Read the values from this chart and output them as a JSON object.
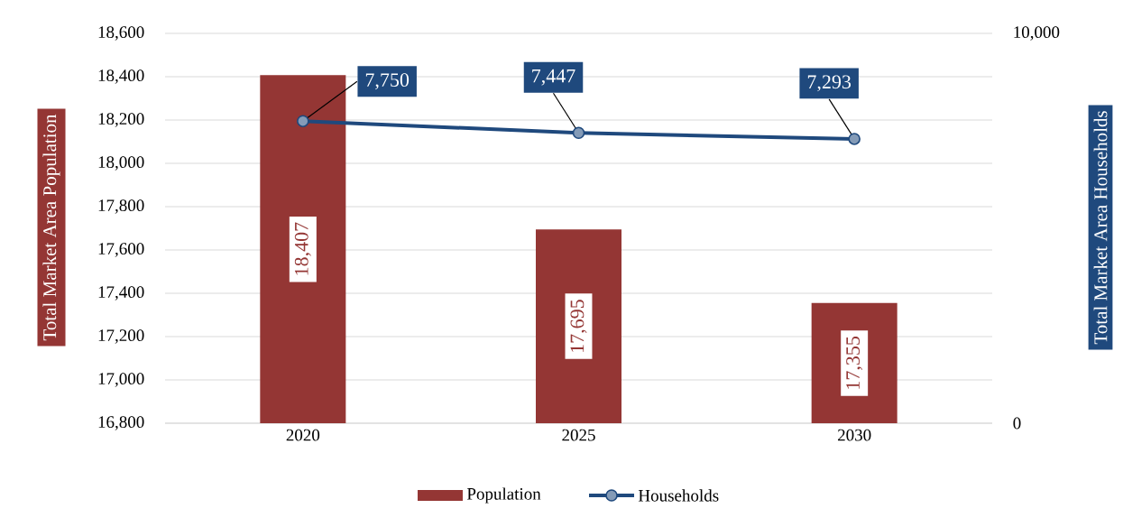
{
  "chart_data": {
    "type": "bar",
    "categories": [
      "2020",
      "2025",
      "2030"
    ],
    "series": [
      {
        "name": "Population",
        "color": "#943634",
        "values": [
          18407,
          17695,
          17355
        ],
        "value_labels": [
          "18,407",
          "17,695",
          "17,355"
        ]
      },
      {
        "name": "Households",
        "type": "line",
        "axis": "y2",
        "color": "#1f497d",
        "values": [
          7750,
          7447,
          7293
        ],
        "value_labels": [
          "7,750",
          "7,447",
          "7,293"
        ]
      }
    ],
    "ylabel": "Total  Market Area Population",
    "y2label": "Total  Market Area Households",
    "ylim": [
      16800,
      18600
    ],
    "yticks": [
      {
        "value": 16800,
        "label": "16,800"
      },
      {
        "value": 17000,
        "label": "17,000"
      },
      {
        "value": 17200,
        "label": "17,200"
      },
      {
        "value": 17400,
        "label": "17,400"
      },
      {
        "value": 17600,
        "label": "17,600"
      },
      {
        "value": 17800,
        "label": "17,800"
      },
      {
        "value": 18000,
        "label": "18,000"
      },
      {
        "value": 18200,
        "label": "18,200"
      },
      {
        "value": 18400,
        "label": "18,400"
      },
      {
        "value": 18600,
        "label": "18,600"
      }
    ],
    "y2lim": [
      0,
      10000
    ],
    "y2ticks": [
      0,
      {
        "value": 10000,
        "label": "10,000"
      }
    ],
    "grid": "y",
    "legend": "bottom",
    "marker": "circle"
  }
}
